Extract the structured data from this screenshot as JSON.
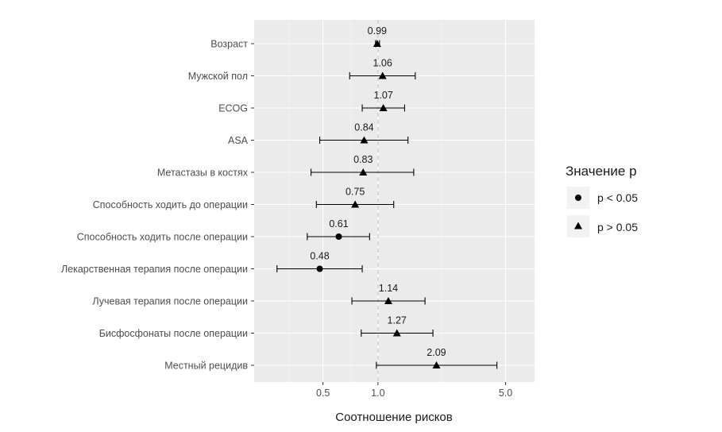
{
  "chart_data": {
    "type": "forest",
    "xlabel": "Соотношение рисков",
    "x_scale": "log",
    "xlim": [
      0.21,
      7.2
    ],
    "x_ticks": [
      {
        "value": 0.5,
        "label": "0.5"
      },
      {
        "value": 1.0,
        "label": "1.0"
      },
      {
        "value": 5.0,
        "label": "5.0"
      }
    ],
    "reference_line": 1.0,
    "grid": true,
    "legend": {
      "title": "Значение p",
      "position": "right",
      "entries": [
        {
          "label": "p < 0.05",
          "shape": "circle"
        },
        {
          "label": "p > 0.05",
          "shape": "triangle"
        }
      ]
    },
    "rows": [
      {
        "label": "Возраст",
        "value": 0.99,
        "value_label": "0.99",
        "lower": 0.97,
        "upper": 1.02,
        "significance": "p > 0.05"
      },
      {
        "label": "Мужской пол",
        "value": 1.06,
        "value_label": "1.06",
        "lower": 0.7,
        "upper": 1.6,
        "significance": "p > 0.05"
      },
      {
        "label": "ECOG",
        "value": 1.07,
        "value_label": "1.07",
        "lower": 0.82,
        "upper": 1.4,
        "significance": "p > 0.05"
      },
      {
        "label": "ASA",
        "value": 0.84,
        "value_label": "0.84",
        "lower": 0.48,
        "upper": 1.46,
        "significance": "p > 0.05"
      },
      {
        "label": "Метастазы в костях",
        "value": 0.83,
        "value_label": "0.83",
        "lower": 0.43,
        "upper": 1.57,
        "significance": "p > 0.05"
      },
      {
        "label": "Способность ходить до операции",
        "value": 0.75,
        "value_label": "0.75",
        "lower": 0.46,
        "upper": 1.22,
        "significance": "p > 0.05"
      },
      {
        "label": "Способность ходить после операции",
        "value": 0.61,
        "value_label": "0.61",
        "lower": 0.41,
        "upper": 0.9,
        "significance": "p < 0.05"
      },
      {
        "label": "Лекарственная терапия после операции",
        "value": 0.48,
        "value_label": "0.48",
        "lower": 0.28,
        "upper": 0.82,
        "significance": "p < 0.05"
      },
      {
        "label": "Лучевая терапия после операции",
        "value": 1.14,
        "value_label": "1.14",
        "lower": 0.72,
        "upper": 1.81,
        "significance": "p > 0.05"
      },
      {
        "label": "Бисфосфонаты после операции",
        "value": 1.27,
        "value_label": "1.27",
        "lower": 0.81,
        "upper": 2.0,
        "significance": "p > 0.05"
      },
      {
        "label": "Местный рецидив",
        "value": 2.09,
        "value_label": "2.09",
        "lower": 0.98,
        "upper": 4.48,
        "significance": "p > 0.05"
      }
    ],
    "colors": {
      "panel_bg": "#ebebeb",
      "grid_major": "#ffffff",
      "grid_minor": "#f5f5f5",
      "reference_line": "#c8c8c8",
      "marks": "#000000",
      "legend_key_bg": "#f2f2f2"
    }
  }
}
